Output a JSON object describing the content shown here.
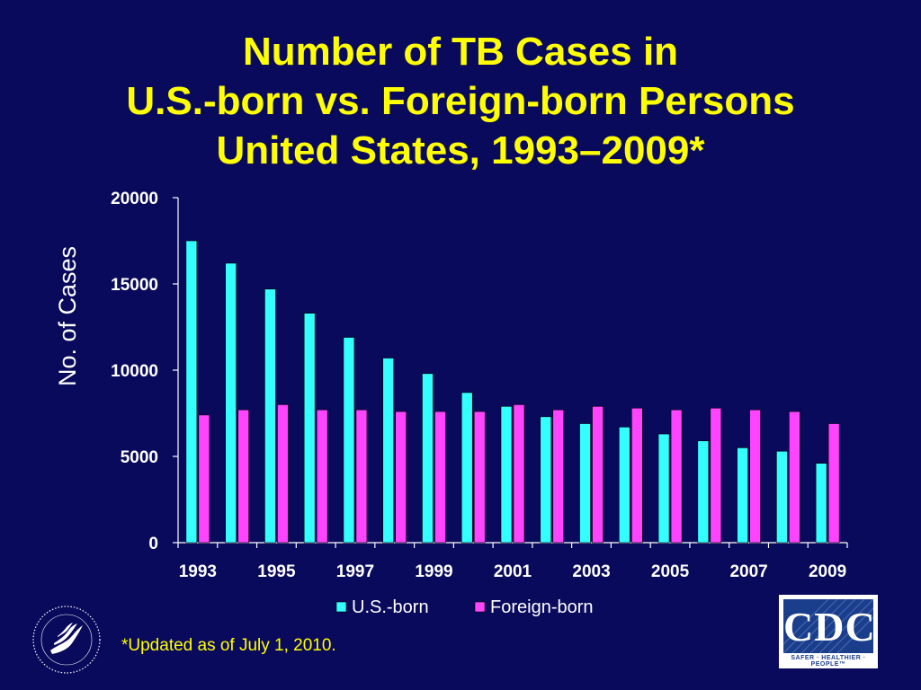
{
  "title": {
    "line1": "Number of TB Cases in",
    "line2": "U.S.-born vs. Foreign-born Persons",
    "line3": "United States, 1993–2009*"
  },
  "footnote": "*Updated as of July 1, 2010.",
  "logos": {
    "cdc_text": "CDC",
    "cdc_tagline": "SAFER · HEALTHIER · PEOPLE™",
    "seal": "hhs-seal-icon"
  },
  "colors": {
    "background": "#0a0a5c",
    "title": "#ffff00",
    "us_born": "#33ffff",
    "foreign_born": "#ff44ff",
    "axis": "#ffffff"
  },
  "chart_data": {
    "type": "bar",
    "categories": [
      "1993",
      "1994",
      "1995",
      "1996",
      "1997",
      "1998",
      "1999",
      "2000",
      "2001",
      "2002",
      "2003",
      "2004",
      "2005",
      "2006",
      "2007",
      "2008",
      "2009"
    ],
    "x_tick_labels": [
      "1993",
      "1995",
      "1997",
      "1999",
      "2001",
      "2003",
      "2005",
      "2007",
      "2009"
    ],
    "series": [
      {
        "name": "U.S.-born",
        "values": [
          17500,
          16200,
          14700,
          13300,
          11900,
          10700,
          9800,
          8700,
          7900,
          7300,
          6900,
          6700,
          6300,
          5900,
          5500,
          5300,
          4600
        ]
      },
      {
        "name": "Foreign-born",
        "values": [
          7400,
          7700,
          8000,
          7700,
          7700,
          7600,
          7600,
          7600,
          8000,
          7700,
          7900,
          7800,
          7700,
          7800,
          7700,
          7600,
          6900
        ]
      }
    ],
    "ylabel": "No. of Cases",
    "xlabel": "",
    "ylim": [
      0,
      20000
    ],
    "yticks": [
      0,
      5000,
      10000,
      15000,
      20000
    ],
    "legend_position": "bottom",
    "grid": false
  }
}
